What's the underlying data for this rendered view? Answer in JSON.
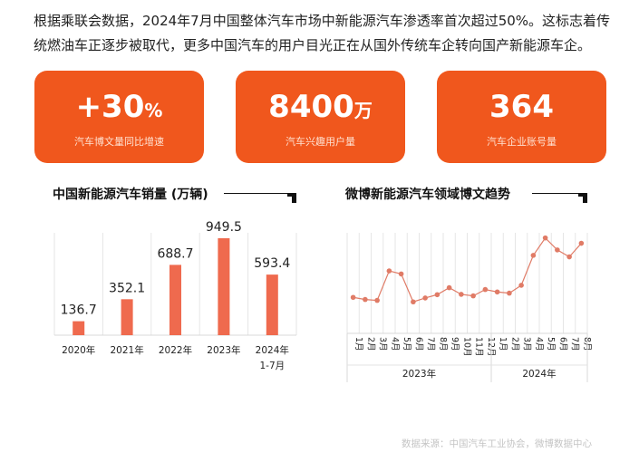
{
  "intro": "根据乘联会数据，2024年7月中国整体汽车市场中新能源汽车渗透率首次超过50%。这标志着传统燃油车正逐步被取代，更多中国汽车的用户目光正在从国外传统车企转向国产新能源车企。",
  "cards": [
    {
      "value": "+30",
      "unit": "%",
      "label": "汽车博文量同比增速"
    },
    {
      "value": "8400",
      "unit": "万",
      "label": "汽车兴趣用户量"
    },
    {
      "value": "364",
      "unit": "",
      "label": "汽车企业账号量"
    }
  ],
  "colors": {
    "card": "#f0571d",
    "bar": "#ef6a4e",
    "line": "#e07b66"
  },
  "chart_data": [
    {
      "type": "bar",
      "title": "中国新能源汽车销量 (万辆)",
      "categories": [
        "2020年",
        "2021年",
        "2022年",
        "2023年",
        "2024年\n1-7月"
      ],
      "values": [
        136.7,
        352.1,
        688.7,
        949.5,
        593.4
      ],
      "grid": "vertical"
    },
    {
      "type": "line",
      "title": "微博新能源汽车领域博文趋势",
      "categories": [
        "1月",
        "2月",
        "3月",
        "4月",
        "5月",
        "6月",
        "7月",
        "8月",
        "9月",
        "10月",
        "11月",
        "12月",
        "1月",
        "2月",
        "3月",
        "4月",
        "5月",
        "6月",
        "7月",
        "8月"
      ],
      "groups": [
        {
          "label": "2023年",
          "count": 12
        },
        {
          "label": "2024年",
          "count": 8
        }
      ],
      "values": [
        35.8,
        33.7,
        32.8,
        62.1,
        59.1,
        31.3,
        35.2,
        38.5,
        45.4,
        38.8,
        37.3,
        43.6,
        41.2,
        40,
        47.8,
        77.6,
        94.9,
        83,
        76.1,
        89.6
      ],
      "ylim": [
        0,
        100
      ],
      "y_axis_shown": false,
      "grid": "vertical"
    }
  ],
  "source": "数据来源：中国汽车工业协会，微博数据中心"
}
